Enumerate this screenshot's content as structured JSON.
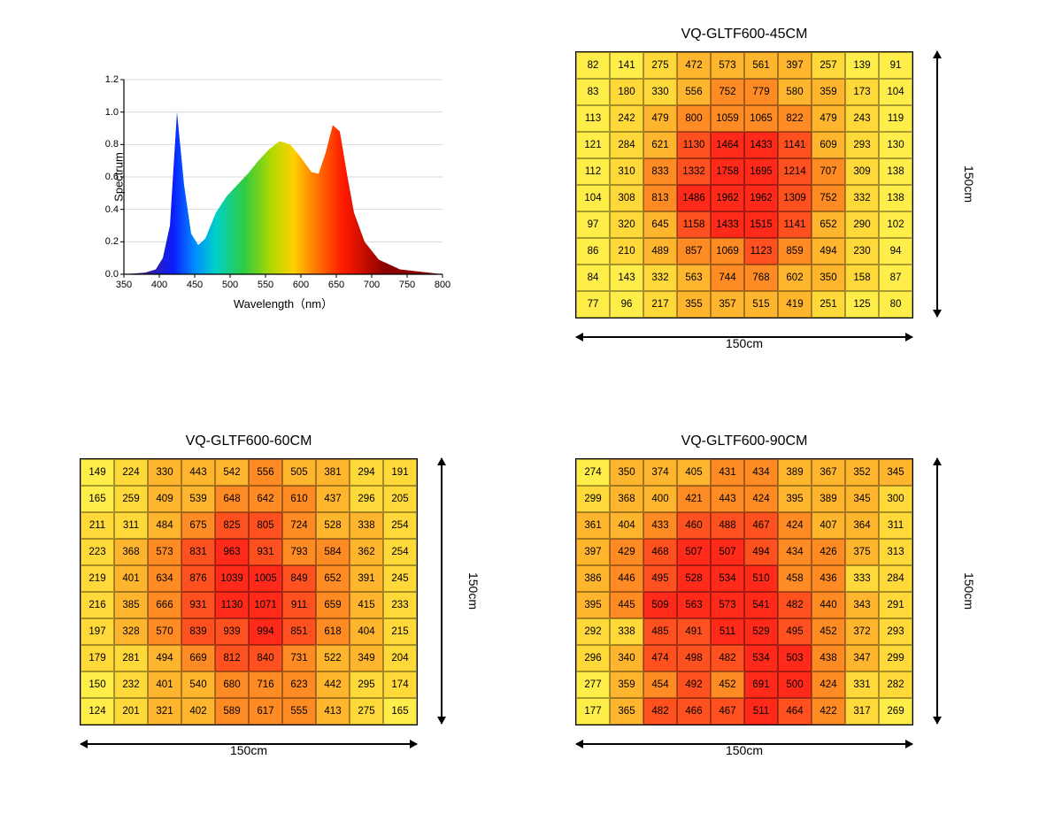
{
  "spectrum": {
    "type": "area",
    "ylabel": "Spectrum",
    "xlabel": "Wavelength（nm）",
    "xlim": [
      350,
      800
    ],
    "ylim": [
      0,
      1.2
    ],
    "yticks": [
      0.0,
      0.2,
      0.4,
      0.6,
      0.8,
      1.0,
      1.2
    ],
    "xticks": [
      350,
      400,
      450,
      500,
      550,
      600,
      650,
      700,
      750,
      800
    ],
    "axis_color": "#000000",
    "grid_color": "#d9d9d9",
    "background_color": "#ffffff",
    "axis_font_size": 11,
    "label_font_size": 13,
    "gradient_stops": [
      {
        "x": 380,
        "color": "#3b1d8e"
      },
      {
        "x": 420,
        "color": "#0b1eff"
      },
      {
        "x": 450,
        "color": "#008cff"
      },
      {
        "x": 480,
        "color": "#00d0c8"
      },
      {
        "x": 520,
        "color": "#2ecc40"
      },
      {
        "x": 560,
        "color": "#b4d800"
      },
      {
        "x": 590,
        "color": "#ffd000"
      },
      {
        "x": 620,
        "color": "#ff7a00"
      },
      {
        "x": 660,
        "color": "#ff1a00"
      },
      {
        "x": 720,
        "color": "#8b0000"
      }
    ],
    "curve": [
      {
        "x": 350,
        "y": 0.0
      },
      {
        "x": 380,
        "y": 0.01
      },
      {
        "x": 395,
        "y": 0.03
      },
      {
        "x": 405,
        "y": 0.1
      },
      {
        "x": 415,
        "y": 0.3
      },
      {
        "x": 425,
        "y": 1.0
      },
      {
        "x": 435,
        "y": 0.55
      },
      {
        "x": 445,
        "y": 0.25
      },
      {
        "x": 455,
        "y": 0.18
      },
      {
        "x": 465,
        "y": 0.22
      },
      {
        "x": 480,
        "y": 0.38
      },
      {
        "x": 495,
        "y": 0.48
      },
      {
        "x": 510,
        "y": 0.55
      },
      {
        "x": 525,
        "y": 0.62
      },
      {
        "x": 540,
        "y": 0.7
      },
      {
        "x": 555,
        "y": 0.77
      },
      {
        "x": 570,
        "y": 0.82
      },
      {
        "x": 585,
        "y": 0.8
      },
      {
        "x": 600,
        "y": 0.72
      },
      {
        "x": 615,
        "y": 0.63
      },
      {
        "x": 625,
        "y": 0.62
      },
      {
        "x": 635,
        "y": 0.75
      },
      {
        "x": 645,
        "y": 0.92
      },
      {
        "x": 655,
        "y": 0.88
      },
      {
        "x": 665,
        "y": 0.62
      },
      {
        "x": 675,
        "y": 0.38
      },
      {
        "x": 690,
        "y": 0.2
      },
      {
        "x": 710,
        "y": 0.09
      },
      {
        "x": 740,
        "y": 0.03
      },
      {
        "x": 780,
        "y": 0.01
      },
      {
        "x": 800,
        "y": 0.0
      }
    ]
  },
  "heatmaps": {
    "common": {
      "x_dimension": "150cm",
      "y_dimension": "150cm",
      "cell_border_color": "#000000",
      "font_size": 11.5,
      "colors": {
        "c1": "#ffed4a",
        "c2": "#ffd83a",
        "c3": "#ffb62e",
        "c4": "#ff8b24",
        "c5": "#ff511f",
        "c6": "#ff2a1a"
      }
    },
    "t45": {
      "title": "VQ-GLTF600-45CM",
      "thresholds": [
        150,
        350,
        700,
        1100,
        1400
      ],
      "rows": [
        [
          82,
          141,
          275,
          472,
          573,
          561,
          397,
          257,
          139,
          91
        ],
        [
          83,
          180,
          330,
          556,
          752,
          779,
          580,
          359,
          173,
          104
        ],
        [
          113,
          242,
          479,
          800,
          1059,
          1065,
          822,
          479,
          243,
          119
        ],
        [
          121,
          284,
          621,
          1130,
          1464,
          1433,
          1141,
          609,
          293,
          130
        ],
        [
          112,
          310,
          833,
          1332,
          1758,
          1695,
          1214,
          707,
          309,
          138
        ],
        [
          104,
          308,
          813,
          1486,
          1962,
          1962,
          1309,
          752,
          332,
          138
        ],
        [
          97,
          320,
          645,
          1158,
          1433,
          1515,
          1141,
          652,
          290,
          102
        ],
        [
          86,
          210,
          489,
          857,
          1069,
          1123,
          859,
          494,
          230,
          94
        ],
        [
          84,
          143,
          332,
          563,
          744,
          768,
          602,
          350,
          158,
          87
        ],
        [
          77,
          96,
          217,
          355,
          357,
          515,
          419,
          251,
          125,
          80
        ]
      ]
    },
    "t60": {
      "title": "VQ-GLTF600-60CM",
      "thresholds": [
        170,
        320,
        550,
        800,
        950
      ],
      "rows": [
        [
          149,
          224,
          330,
          443,
          542,
          556,
          505,
          381,
          294,
          191
        ],
        [
          165,
          259,
          409,
          539,
          648,
          642,
          610,
          437,
          296,
          205
        ],
        [
          211,
          311,
          484,
          675,
          825,
          805,
          724,
          528,
          338,
          254
        ],
        [
          223,
          368,
          573,
          831,
          963,
          931,
          793,
          584,
          362,
          254
        ],
        [
          219,
          401,
          634,
          876,
          1039,
          1005,
          849,
          652,
          391,
          245
        ],
        [
          216,
          385,
          666,
          931,
          1130,
          1071,
          911,
          659,
          415,
          233
        ],
        [
          197,
          328,
          570,
          839,
          939,
          994,
          851,
          618,
          404,
          215
        ],
        [
          179,
          281,
          494,
          669,
          812,
          840,
          731,
          522,
          349,
          204
        ],
        [
          150,
          232,
          401,
          540,
          680,
          716,
          623,
          442,
          295,
          174
        ],
        [
          124,
          201,
          321,
          402,
          589,
          617,
          555,
          413,
          275,
          165
        ]
      ]
    },
    "t90": {
      "title": "VQ-GLTF600-90CM",
      "thresholds": [
        280,
        340,
        410,
        460,
        500
      ],
      "rows": [
        [
          274,
          350,
          374,
          405,
          431,
          434,
          389,
          367,
          352,
          345
        ],
        [
          299,
          368,
          400,
          421,
          443,
          424,
          395,
          389,
          345,
          300
        ],
        [
          361,
          404,
          433,
          460,
          488,
          467,
          424,
          407,
          364,
          311
        ],
        [
          397,
          429,
          468,
          507,
          507,
          494,
          434,
          426,
          375,
          313
        ],
        [
          386,
          446,
          495,
          528,
          534,
          510,
          458,
          436,
          333,
          284
        ],
        [
          395,
          445,
          509,
          563,
          573,
          541,
          482,
          440,
          343,
          291
        ],
        [
          292,
          338,
          485,
          491,
          511,
          529,
          495,
          452,
          372,
          293
        ],
        [
          296,
          340,
          474,
          498,
          482,
          534,
          503,
          438,
          347,
          299
        ],
        [
          277,
          359,
          454,
          492,
          452,
          691,
          500,
          424,
          331,
          282
        ],
        [
          177,
          365,
          482,
          466,
          467,
          511,
          464,
          422,
          317,
          269
        ]
      ]
    }
  }
}
